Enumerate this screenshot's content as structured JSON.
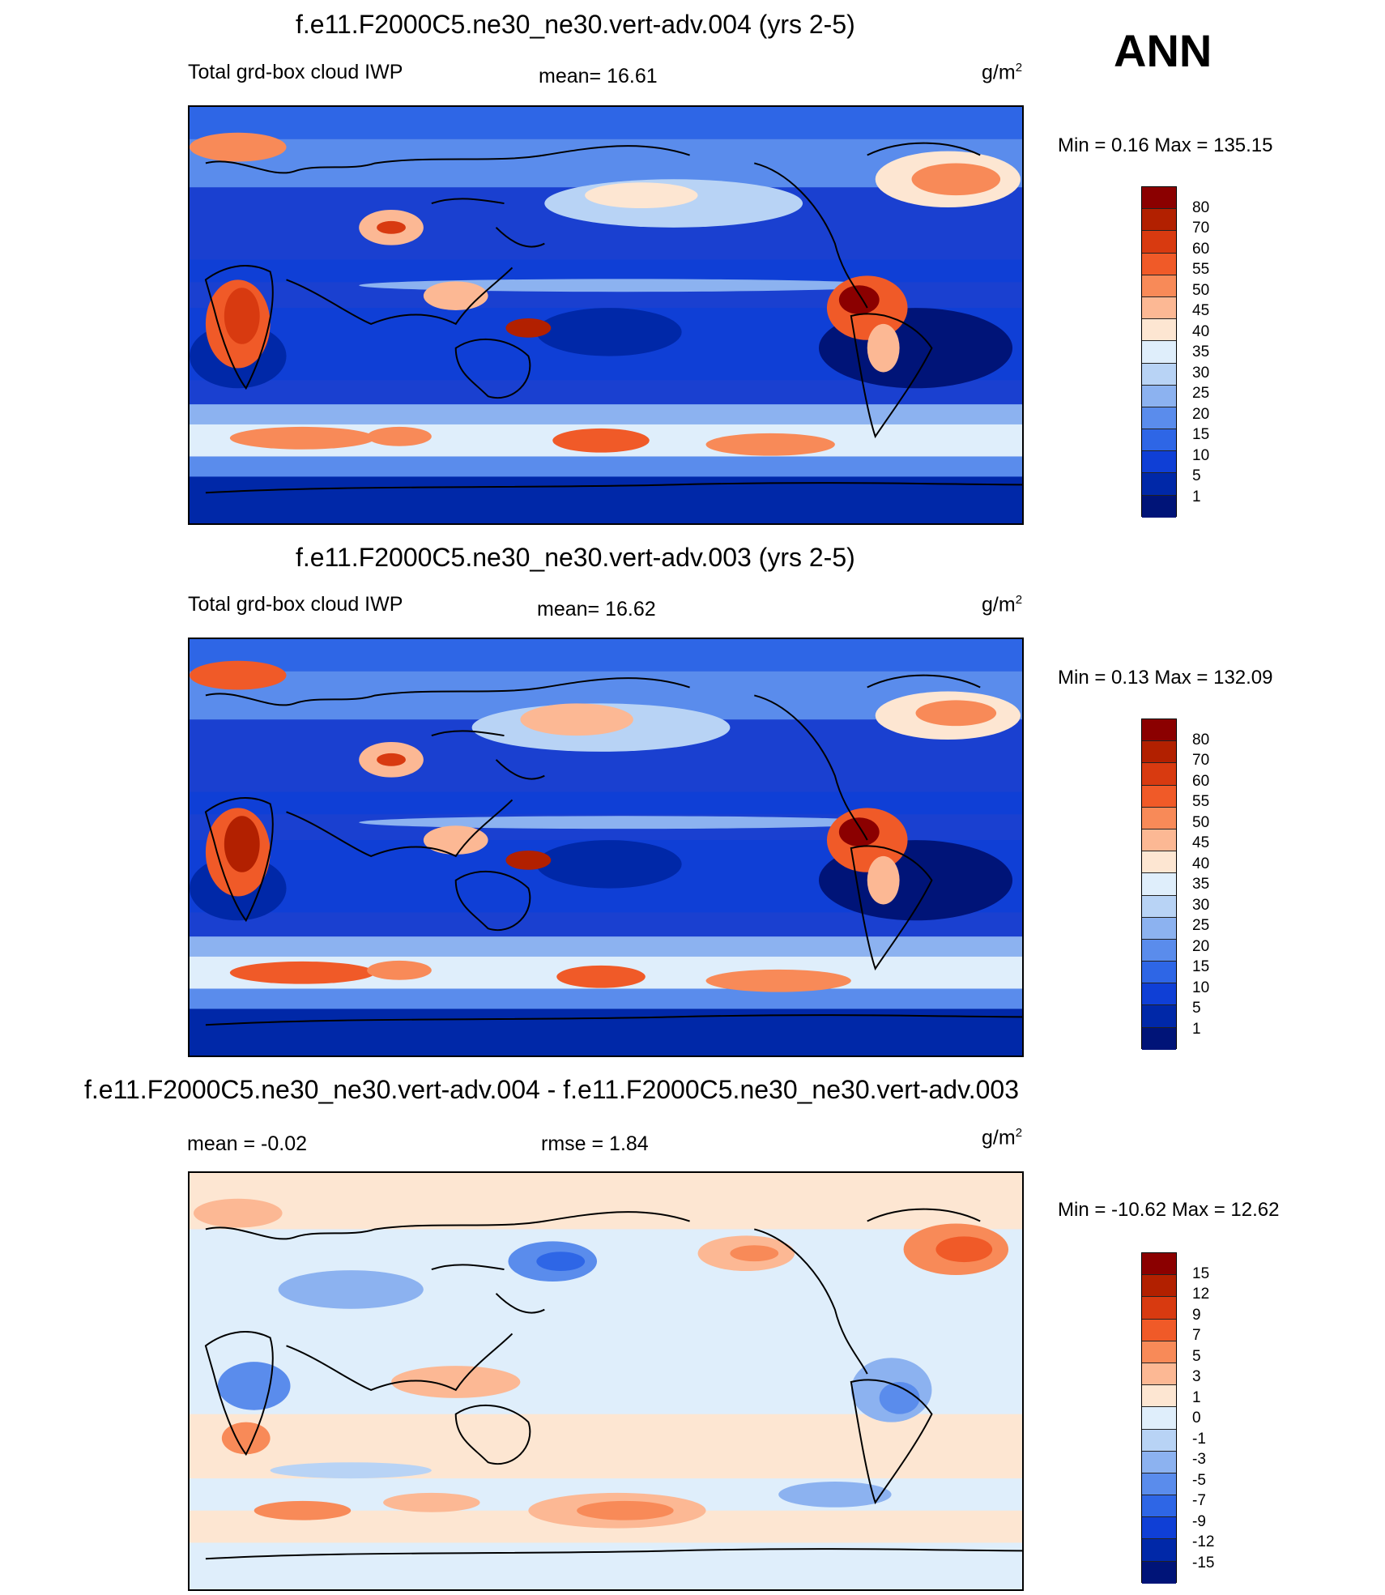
{
  "season": "ANN",
  "panels": [
    {
      "id": "p1",
      "title": "f.e11.F2000C5.ne30_ne30.vert-adv.004 (yrs 2-5)",
      "left_label": "Total grd-box cloud IWP",
      "center_label": "mean=  16.61",
      "units": "g/m",
      "units_sup": "2",
      "minmax": "Min =   0.16 Max = 135.15",
      "colorbar": {
        "colors": [
          "#8b0000",
          "#b22000",
          "#d83a10",
          "#f05a28",
          "#f88a58",
          "#fcb894",
          "#fde6d2",
          "#dfeefb",
          "#b8d3f5",
          "#8cb2f0",
          "#5a8cec",
          "#2e66e6",
          "#0f3fd6",
          "#0028a8",
          "#001478"
        ],
        "labels": [
          "80",
          "70",
          "60",
          "55",
          "50",
          "45",
          "40",
          "35",
          "30",
          "25",
          "20",
          "15",
          "10",
          "5",
          "1"
        ]
      }
    },
    {
      "id": "p2",
      "title": "f.e11.F2000C5.ne30_ne30.vert-adv.003 (yrs 2-5)",
      "left_label": "Total grd-box cloud IWP",
      "center_label": "mean=  16.62",
      "units": "g/m",
      "units_sup": "2",
      "minmax": "Min =   0.13 Max = 132.09",
      "colorbar": {
        "colors": [
          "#8b0000",
          "#b22000",
          "#d83a10",
          "#f05a28",
          "#f88a58",
          "#fcb894",
          "#fde6d2",
          "#dfeefb",
          "#b8d3f5",
          "#8cb2f0",
          "#5a8cec",
          "#2e66e6",
          "#0f3fd6",
          "#0028a8",
          "#001478"
        ],
        "labels": [
          "80",
          "70",
          "60",
          "55",
          "50",
          "45",
          "40",
          "35",
          "30",
          "25",
          "20",
          "15",
          "10",
          "5",
          "1"
        ]
      }
    },
    {
      "id": "p3",
      "title": "f.e11.F2000C5.ne30_ne30.vert-adv.004 - f.e11.F2000C5.ne30_ne30.vert-adv.003",
      "left_label": "mean =  -0.02",
      "center_label": "rmse =   1.84",
      "units": "g/m",
      "units_sup": "2",
      "minmax": "Min = -10.62 Max =  12.62",
      "colorbar": {
        "colors": [
          "#8b0000",
          "#b22000",
          "#d83a10",
          "#f05a28",
          "#f88a58",
          "#fcb894",
          "#fde6d2",
          "#dfeefb",
          "#b8d3f5",
          "#8cb2f0",
          "#5a8cec",
          "#2e66e6",
          "#0f3fd6",
          "#0028a8",
          "#001478"
        ],
        "labels": [
          "15",
          "12",
          "9",
          "7",
          "5",
          "3",
          "1",
          "0",
          "-1",
          "-3",
          "-5",
          "-7",
          "-9",
          "-12",
          "-15"
        ]
      }
    }
  ]
}
